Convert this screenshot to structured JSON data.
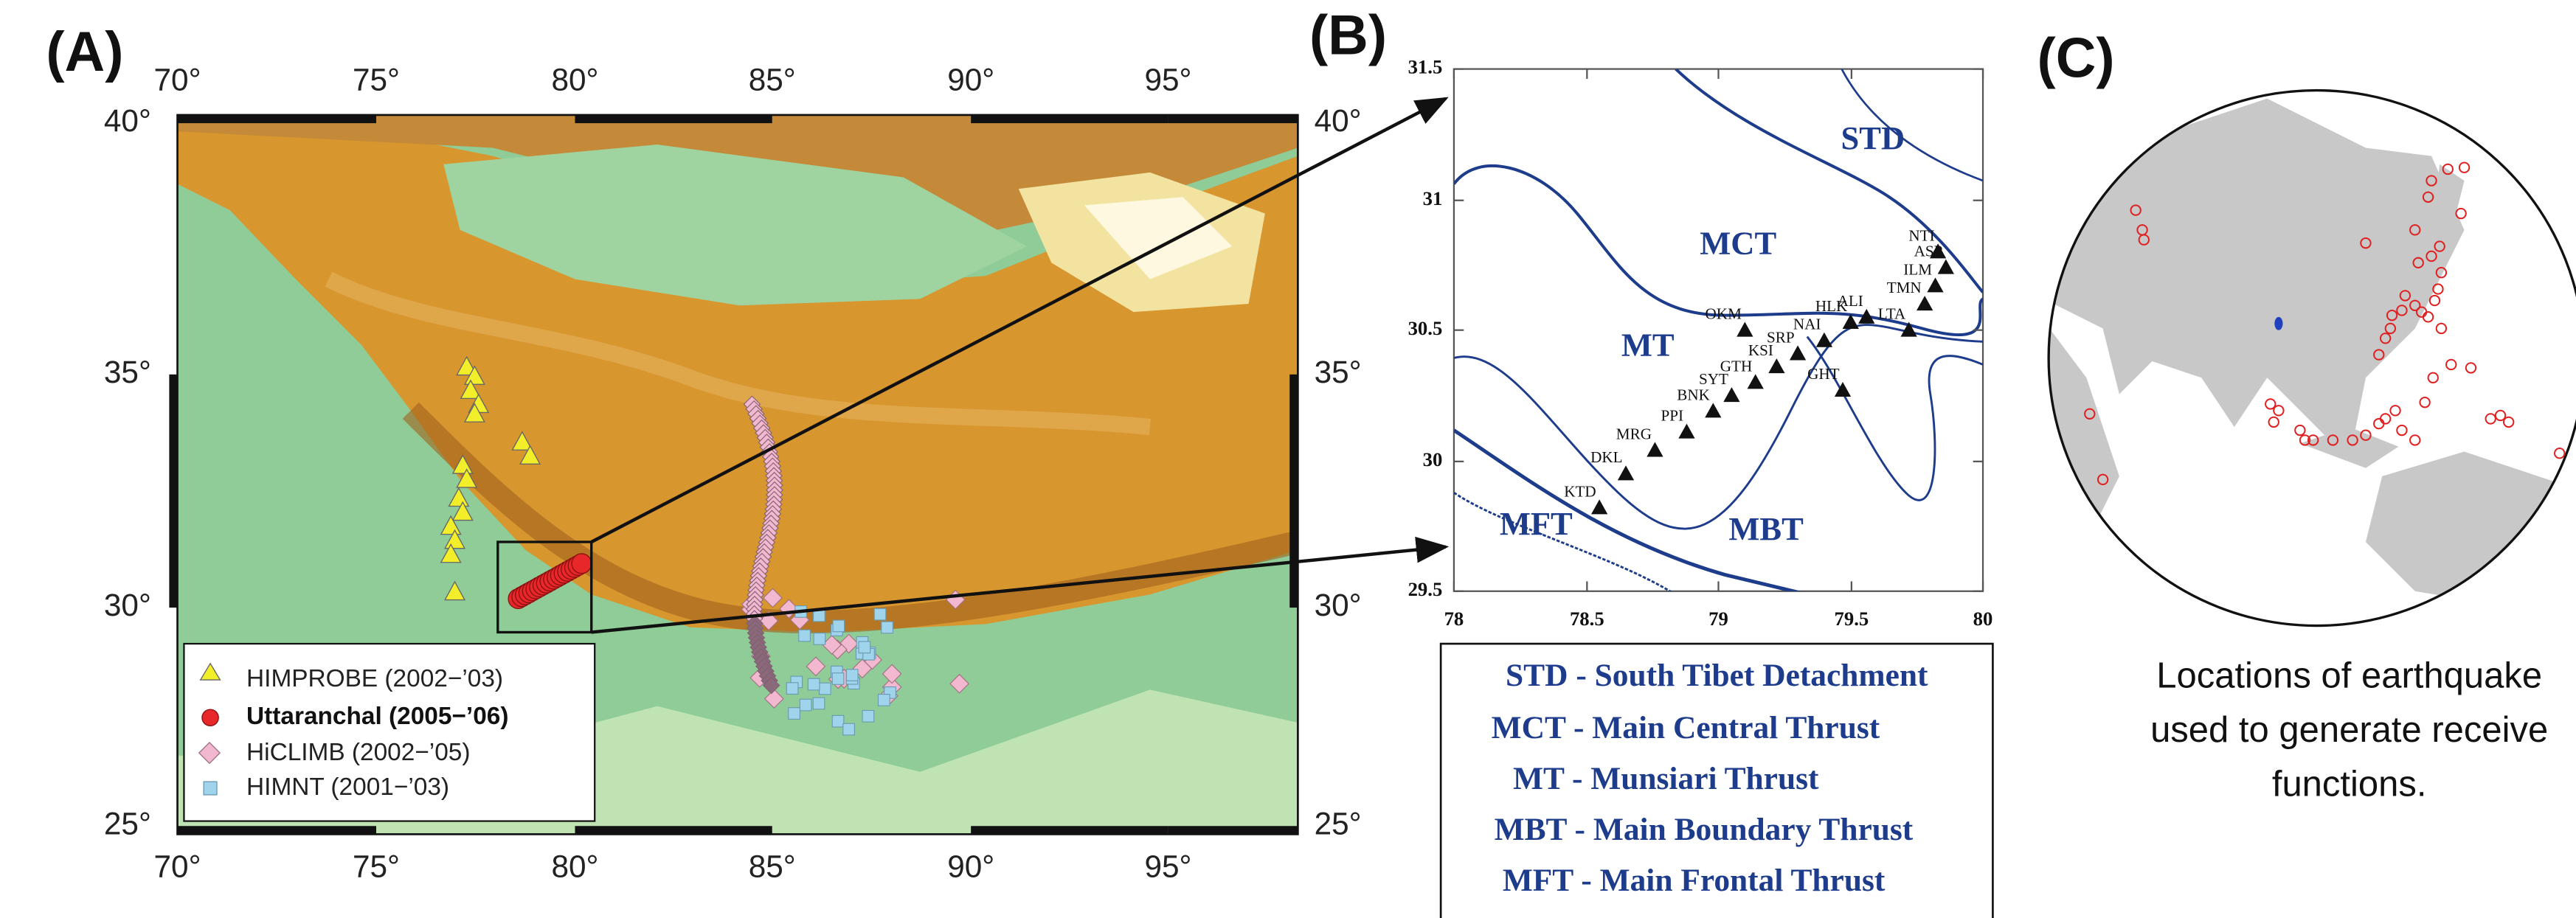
{
  "panel_a": {
    "label": "(A)",
    "top_ticks": [
      "70°",
      "75°",
      "80°",
      "85°",
      "90°",
      "95°"
    ],
    "bottom_ticks": [
      "70°",
      "75°",
      "80°",
      "85°",
      "90°",
      "95°"
    ],
    "left_ticks": [
      "40°",
      "35°",
      "30°",
      "25°"
    ],
    "right_ticks": [
      "40°",
      "35°",
      "30°",
      "25°"
    ],
    "legend": [
      "HIMPROBE (2002−’03)",
      "Uttaranchal (2005−’06)",
      "HiCLIMB (2002−’05)",
      "HIMNT (2001−’03)"
    ]
  },
  "panel_b": {
    "label": "(B)",
    "x_ticks": [
      "78",
      "78.5",
      "79",
      "79.5",
      "80"
    ],
    "y_ticks": [
      "31.5",
      "31",
      "30.5",
      "30",
      "29.5"
    ],
    "faults": [
      "STD",
      "MCT",
      "MT",
      "MFT",
      "MBT"
    ],
    "stations": [
      "KTD",
      "DKL",
      "MRG",
      "PPI",
      "BNK",
      "SYT",
      "GTH",
      "KSI",
      "SRP",
      "NAI",
      "OKM",
      "GHT",
      "HLK",
      "ALI",
      "LTA",
      "TMN",
      "ILM",
      "ASP",
      "NTI"
    ],
    "legend": [
      "STD - South Tibet Detachment",
      "MCT - Main Central Thrust",
      "MT - Munsiari Thrust",
      "MBT - Main Boundary Thrust",
      "MFT - Main Frontal Thrust"
    ]
  },
  "panel_c": {
    "label": "(C)",
    "caption": [
      "Locations of earthquake",
      "used to generate receive",
      "functions."
    ]
  }
}
